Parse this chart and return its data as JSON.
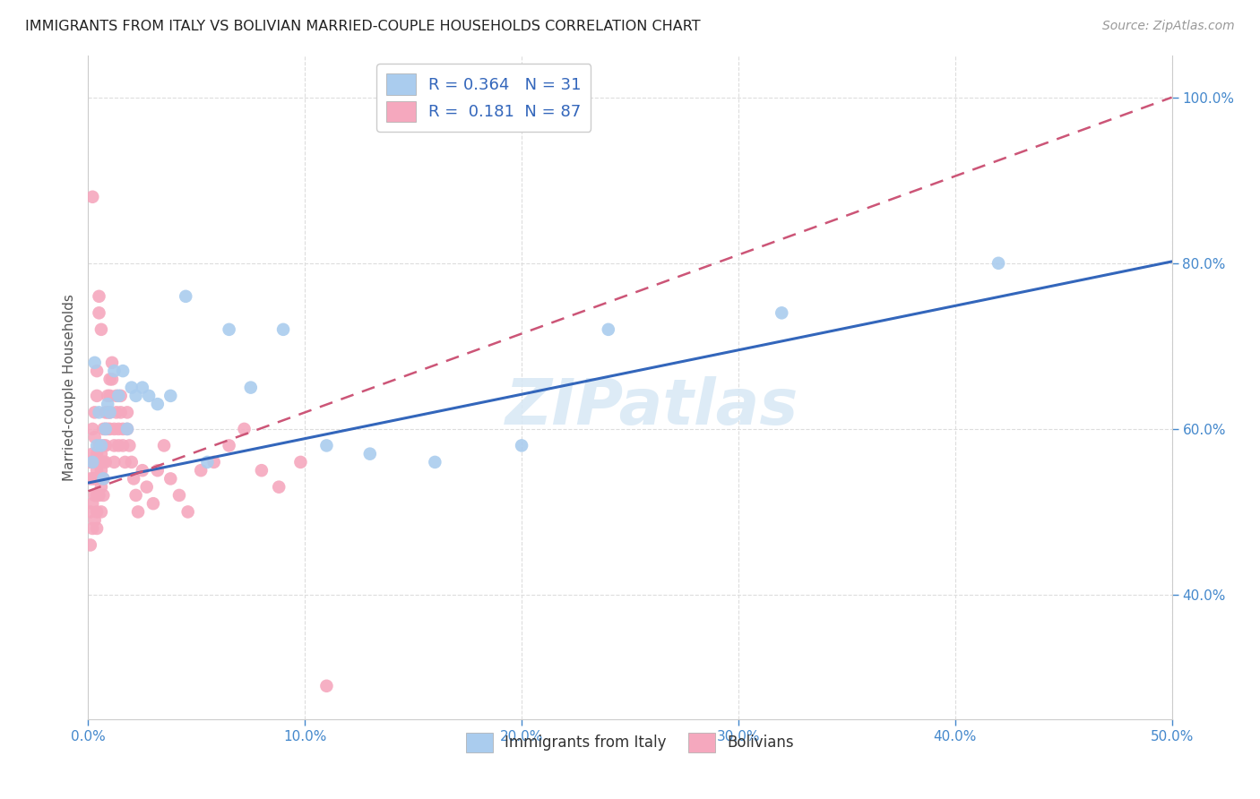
{
  "title": "IMMIGRANTS FROM ITALY VS BOLIVIAN MARRIED-COUPLE HOUSEHOLDS CORRELATION CHART",
  "source": "Source: ZipAtlas.com",
  "ylabel": "Married-couple Households",
  "xlim": [
    0.0,
    0.5
  ],
  "ylim": [
    0.25,
    1.05
  ],
  "xtick_vals": [
    0.0,
    0.1,
    0.2,
    0.3,
    0.4,
    0.5
  ],
  "xtick_labels": [
    "0.0%",
    "10.0%",
    "20.0%",
    "30.0%",
    "40.0%",
    "50.0%"
  ],
  "ytick_vals": [
    0.4,
    0.6,
    0.8,
    1.0
  ],
  "ytick_labels": [
    "40.0%",
    "60.0%",
    "80.0%",
    "100.0%"
  ],
  "legend1_label": "R = 0.364   N = 31",
  "legend2_label": "R =  0.181  N = 87",
  "blue_color": "#aaccee",
  "pink_color": "#f5a8be",
  "blue_line_color": "#3366bb",
  "pink_line_color": "#cc5577",
  "watermark": "ZIPatlas",
  "italy_x": [
    0.002,
    0.003,
    0.004,
    0.005,
    0.006,
    0.007,
    0.008,
    0.009,
    0.01,
    0.012,
    0.014,
    0.016,
    0.018,
    0.02,
    0.022,
    0.025,
    0.028,
    0.032,
    0.038,
    0.045,
    0.055,
    0.065,
    0.075,
    0.09,
    0.11,
    0.13,
    0.16,
    0.2,
    0.24,
    0.32,
    0.42
  ],
  "italy_y": [
    0.56,
    0.68,
    0.58,
    0.62,
    0.58,
    0.54,
    0.6,
    0.63,
    0.62,
    0.67,
    0.64,
    0.67,
    0.6,
    0.65,
    0.64,
    0.65,
    0.64,
    0.63,
    0.64,
    0.76,
    0.56,
    0.72,
    0.65,
    0.72,
    0.58,
    0.57,
    0.56,
    0.58,
    0.72,
    0.74,
    0.8
  ],
  "bolivia_x": [
    0.001,
    0.001,
    0.001,
    0.001,
    0.002,
    0.002,
    0.002,
    0.002,
    0.002,
    0.002,
    0.003,
    0.003,
    0.003,
    0.003,
    0.003,
    0.003,
    0.004,
    0.004,
    0.004,
    0.004,
    0.004,
    0.004,
    0.004,
    0.005,
    0.005,
    0.005,
    0.005,
    0.005,
    0.005,
    0.006,
    0.006,
    0.006,
    0.006,
    0.006,
    0.007,
    0.007,
    0.007,
    0.007,
    0.007,
    0.008,
    0.008,
    0.008,
    0.008,
    0.009,
    0.009,
    0.009,
    0.01,
    0.01,
    0.01,
    0.01,
    0.011,
    0.011,
    0.012,
    0.012,
    0.012,
    0.013,
    0.013,
    0.014,
    0.014,
    0.015,
    0.015,
    0.016,
    0.016,
    0.017,
    0.018,
    0.018,
    0.019,
    0.02,
    0.021,
    0.022,
    0.023,
    0.025,
    0.027,
    0.03,
    0.032,
    0.035,
    0.038,
    0.042,
    0.046,
    0.052,
    0.058,
    0.065,
    0.072,
    0.08,
    0.088,
    0.098,
    0.11
  ],
  "bolivia_y": [
    0.56,
    0.54,
    0.5,
    0.46,
    0.57,
    0.54,
    0.51,
    0.48,
    0.6,
    0.88,
    0.56,
    0.54,
    0.52,
    0.62,
    0.59,
    0.49,
    0.57,
    0.55,
    0.52,
    0.67,
    0.64,
    0.5,
    0.48,
    0.58,
    0.56,
    0.54,
    0.52,
    0.76,
    0.74,
    0.57,
    0.55,
    0.53,
    0.72,
    0.5,
    0.6,
    0.58,
    0.56,
    0.54,
    0.52,
    0.62,
    0.6,
    0.58,
    0.56,
    0.64,
    0.62,
    0.6,
    0.66,
    0.64,
    0.62,
    0.6,
    0.68,
    0.66,
    0.6,
    0.58,
    0.56,
    0.64,
    0.62,
    0.6,
    0.58,
    0.64,
    0.62,
    0.6,
    0.58,
    0.56,
    0.62,
    0.6,
    0.58,
    0.56,
    0.54,
    0.52,
    0.5,
    0.55,
    0.53,
    0.51,
    0.55,
    0.58,
    0.54,
    0.52,
    0.5,
    0.55,
    0.56,
    0.58,
    0.6,
    0.55,
    0.53,
    0.56,
    0.29
  ],
  "italy_line_x": [
    0.0,
    0.5
  ],
  "italy_line_y": [
    0.535,
    0.802
  ],
  "bolivia_line_x": [
    0.0,
    0.5
  ],
  "bolivia_line_y": [
    0.525,
    1.0
  ]
}
